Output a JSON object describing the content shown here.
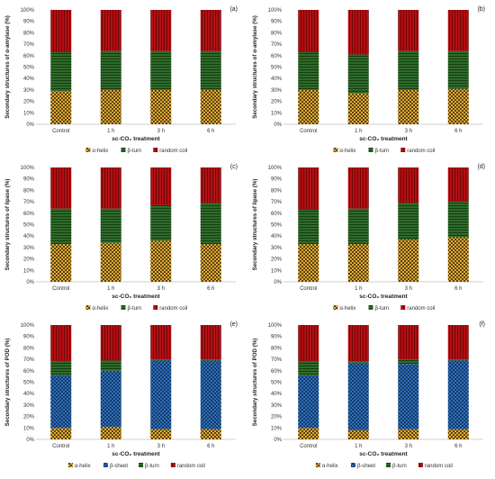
{
  "colors": {
    "alpha_helix": "#e0a93a",
    "beta_sheet": "#2f6fb8",
    "beta_turn": "#2e6b2a",
    "random_coil": "#b40f12"
  },
  "chart_data": [
    {
      "type": "bar",
      "stacked": true,
      "panel_label": "(a)",
      "ylabel": "Secondary structures of α-amylase (%)",
      "xlabel": "sc-CO₂ treatment",
      "categories": [
        "Control",
        "1 h",
        "3 h",
        "6 h"
      ],
      "ylim": [
        0,
        100
      ],
      "yticks": [
        "0%",
        "10%",
        "20%",
        "30%",
        "40%",
        "50%",
        "60%",
        "70%",
        "80%",
        "90%",
        "100%"
      ],
      "legend_position": "bottom",
      "series": [
        {
          "name": "α-helix",
          "key": "alpha_helix",
          "values": [
            29,
            30,
            30,
            30
          ]
        },
        {
          "name": "β-turn",
          "key": "beta_turn",
          "values": [
            34,
            34,
            34,
            34
          ]
        },
        {
          "name": "random coil",
          "key": "random_coil",
          "values": [
            37,
            36,
            36,
            36
          ]
        }
      ]
    },
    {
      "type": "bar",
      "stacked": true,
      "panel_label": "(b)",
      "ylabel": "Secondary structures of α-amylase (%)",
      "xlabel": "sc-CO₂ treatment",
      "categories": [
        "Control",
        "1 h",
        "3 h",
        "6 h"
      ],
      "ylim": [
        0,
        100
      ],
      "yticks": [
        "0%",
        "10%",
        "20%",
        "30%",
        "40%",
        "50%",
        "60%",
        "70%",
        "80%",
        "90%",
        "100%"
      ],
      "legend_position": "bottom",
      "series": [
        {
          "name": "α-helix",
          "key": "alpha_helix",
          "values": [
            30,
            27,
            30,
            31
          ]
        },
        {
          "name": "β-turn",
          "key": "beta_turn",
          "values": [
            33,
            34,
            34,
            33
          ]
        },
        {
          "name": "random coil",
          "key": "random_coil",
          "values": [
            37,
            39,
            36,
            36
          ]
        }
      ]
    },
    {
      "type": "bar",
      "stacked": true,
      "panel_label": "(c)",
      "ylabel": "Secondary structures of lipase (%)",
      "xlabel": "sc-CO₂ treatment",
      "categories": [
        "Control",
        "1 h",
        "3 h",
        "6 h"
      ],
      "ylim": [
        0,
        100
      ],
      "yticks": [
        "0%",
        "10%",
        "20%",
        "30%",
        "40%",
        "50%",
        "60%",
        "70%",
        "80%",
        "90%",
        "100%"
      ],
      "legend_position": "bottom",
      "series": [
        {
          "name": "α-helix",
          "key": "alpha_helix",
          "values": [
            33,
            34,
            36,
            33
          ]
        },
        {
          "name": "β-turn",
          "key": "beta_turn",
          "values": [
            31,
            30,
            31,
            36
          ]
        },
        {
          "name": "random coil",
          "key": "random_coil",
          "values": [
            36,
            36,
            33,
            31
          ]
        }
      ]
    },
    {
      "type": "bar",
      "stacked": true,
      "panel_label": "(d)",
      "ylabel": "Secondary structures of lipase (%)",
      "xlabel": "sc-CO₂ treatment",
      "categories": [
        "Control",
        "1 h",
        "3 h",
        "6 h"
      ],
      "ylim": [
        0,
        100
      ],
      "yticks": [
        "0%",
        "10%",
        "20%",
        "30%",
        "40%",
        "50%",
        "60%",
        "70%",
        "80%",
        "90%",
        "100%"
      ],
      "legend_position": "bottom",
      "series": [
        {
          "name": "α-helix",
          "key": "alpha_helix",
          "values": [
            33,
            33,
            37,
            39
          ]
        },
        {
          "name": "β-turn",
          "key": "beta_turn",
          "values": [
            30,
            31,
            32,
            31
          ]
        },
        {
          "name": "random coil",
          "key": "random_coil",
          "values": [
            37,
            36,
            31,
            30
          ]
        }
      ]
    },
    {
      "type": "bar",
      "stacked": true,
      "panel_label": "(e)",
      "ylabel": "Secondary structures of POD (%)",
      "xlabel": "sc-CO₂ treatment",
      "categories": [
        "Control",
        "1 h",
        "3 h",
        "6 h"
      ],
      "ylim": [
        0,
        100
      ],
      "yticks": [
        "0%",
        "10%",
        "20%",
        "30%",
        "40%",
        "50%",
        "60%",
        "70%",
        "80%",
        "90%",
        "100%"
      ],
      "legend_position": "bottom",
      "series": [
        {
          "name": "α-helix",
          "key": "alpha_helix",
          "values": [
            10,
            11,
            9,
            9
          ]
        },
        {
          "name": "β-sheet",
          "key": "beta_sheet",
          "values": [
            46,
            49,
            60,
            60
          ]
        },
        {
          "name": "β-turn",
          "key": "beta_turn",
          "values": [
            12,
            9,
            1,
            1
          ]
        },
        {
          "name": "random coil",
          "key": "random_coil",
          "values": [
            32,
            31,
            30,
            30
          ]
        }
      ]
    },
    {
      "type": "bar",
      "stacked": true,
      "panel_label": "(f)",
      "ylabel": "Secondary structures of POD (%)",
      "xlabel": "sc-CO₂ treatment",
      "categories": [
        "Control",
        "1 h",
        "3 h",
        "6 h"
      ],
      "ylim": [
        0,
        100
      ],
      "yticks": [
        "0%",
        "10%",
        "20%",
        "30%",
        "40%",
        "50%",
        "60%",
        "70%",
        "80%",
        "90%",
        "100%"
      ],
      "legend_position": "bottom",
      "series": [
        {
          "name": "α-helix",
          "key": "alpha_helix",
          "values": [
            10,
            8,
            9,
            9
          ]
        },
        {
          "name": "β-sheet",
          "key": "beta_sheet",
          "values": [
            46,
            59,
            57,
            60
          ]
        },
        {
          "name": "β-turn",
          "key": "beta_turn",
          "values": [
            12,
            1,
            4,
            1
          ]
        },
        {
          "name": "random coil",
          "key": "random_coil",
          "values": [
            32,
            32,
            30,
            30
          ]
        }
      ]
    }
  ]
}
